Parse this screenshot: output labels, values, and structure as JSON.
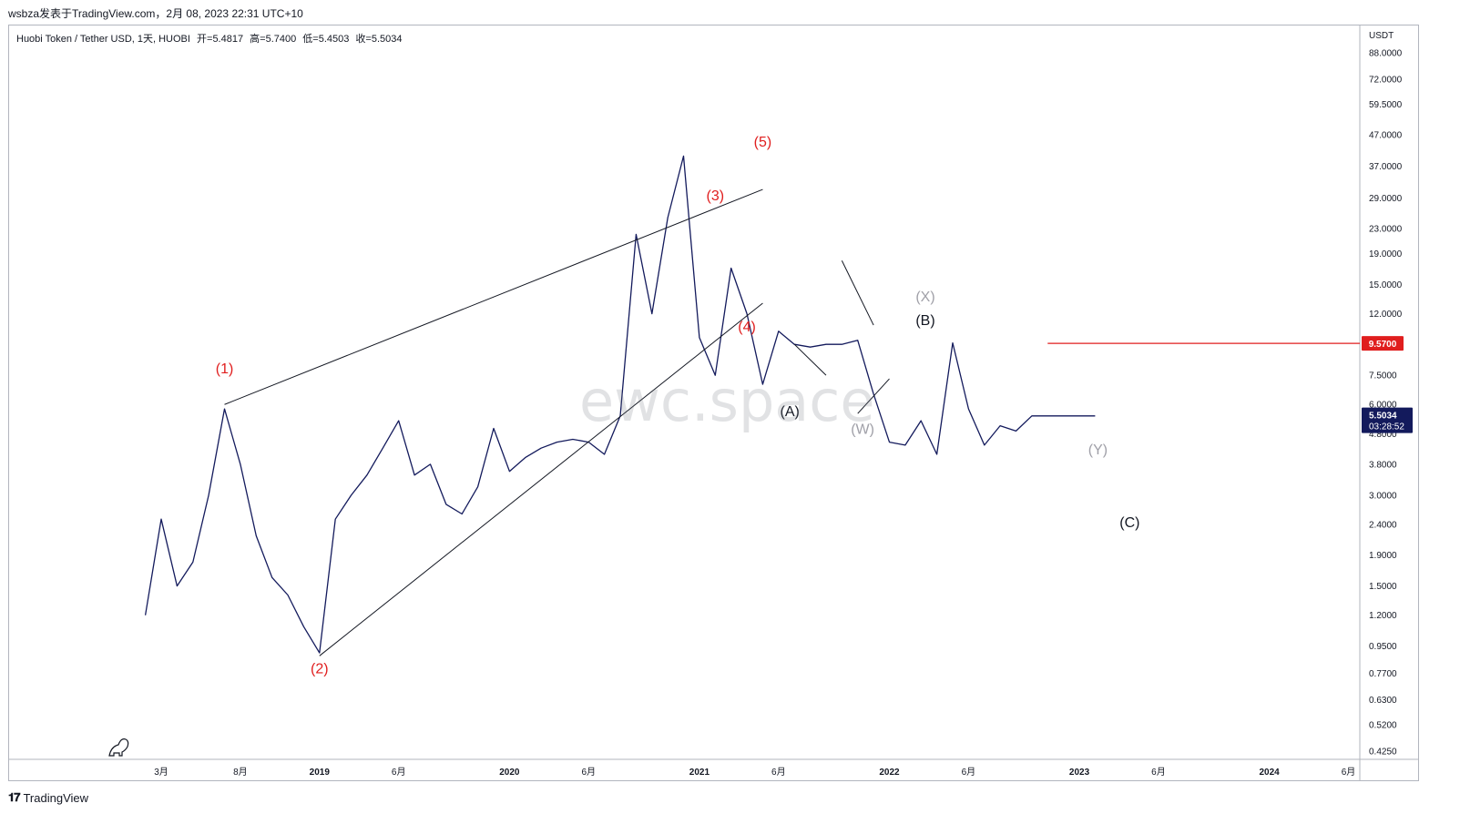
{
  "header": {
    "publish_line": "wsbza发表于TradingView.com，2月 08, 2023 22:31 UTC+10"
  },
  "legend": {
    "symbol": "Huobi Token / Tether USD, 1天, HUOBI",
    "open": "开=5.4817",
    "high": "高=5.7400",
    "low": "低=5.4503",
    "close": "收=5.5034"
  },
  "watermark": "ewc.space",
  "footer": {
    "brand": "TradingView"
  },
  "chart_data": {
    "type": "line",
    "scale": "log",
    "currency_label": "USDT",
    "y_ticks": [
      "88.0000",
      "72.0000",
      "59.5000",
      "47.0000",
      "37.0000",
      "29.0000",
      "23.0000",
      "19.0000",
      "15.0000",
      "12.0000",
      "7.5000",
      "6.0000",
      "4.8000",
      "3.8000",
      "3.0000",
      "2.4000",
      "1.9000",
      "1.5000",
      "1.2000",
      "0.9500",
      "0.7700",
      "0.6300",
      "0.5200",
      "0.4250"
    ],
    "x_ticks": [
      "3月",
      "8月",
      "2019",
      "6月",
      "2020",
      "6月",
      "2021",
      "6月",
      "2022",
      "6月",
      "2023",
      "6月",
      "2024",
      "6月"
    ],
    "series": [
      {
        "x": [
          "2018-02",
          "2018-03",
          "2018-04",
          "2018-05",
          "2018-06",
          "2018-07",
          "2018-08",
          "2018-09",
          "2018-10",
          "2018-11",
          "2018-12",
          "2019-01",
          "2019-02",
          "2019-03",
          "2019-04",
          "2019-05",
          "2019-06",
          "2019-07",
          "2019-08",
          "2019-09",
          "2019-10",
          "2019-11",
          "2019-12",
          "2020-01",
          "2020-02",
          "2020-03",
          "2020-04",
          "2020-05",
          "2020-06",
          "2020-07",
          "2020-08",
          "2020-09",
          "2020-10",
          "2020-11",
          "2020-12",
          "2021-01",
          "2021-02",
          "2021-03",
          "2021-04",
          "2021-05",
          "2021-06",
          "2021-07",
          "2021-08",
          "2021-09",
          "2021-10",
          "2021-11",
          "2021-12",
          "2022-01",
          "2022-02",
          "2022-03",
          "2022-04",
          "2022-05",
          "2022-06",
          "2022-07",
          "2022-08",
          "2022-09",
          "2022-10",
          "2022-11",
          "2022-12",
          "2023-01",
          "2023-02"
        ],
        "y": [
          1.2,
          2.5,
          1.5,
          1.8,
          3.0,
          5.8,
          3.8,
          2.2,
          1.6,
          1.4,
          1.1,
          0.9,
          2.5,
          3.0,
          3.5,
          4.3,
          5.3,
          3.5,
          3.8,
          2.8,
          2.6,
          3.2,
          5.0,
          3.6,
          4.0,
          4.3,
          4.5,
          4.6,
          4.5,
          4.1,
          5.5,
          22.0,
          12.0,
          25.0,
          40.0,
          10.0,
          7.5,
          17.0,
          12.0,
          7.0,
          10.5,
          9.5,
          9.3,
          9.5,
          9.5,
          9.8,
          6.5,
          4.5,
          4.4,
          5.3,
          4.1,
          9.6,
          5.8,
          4.4,
          5.1,
          4.9,
          5.5,
          5.5,
          5.5,
          5.5,
          5.5
        ]
      }
    ],
    "price_level_label": "9.5700",
    "last_price_label": "5.5034",
    "countdown_label": "03:28:52",
    "annotations": [
      {
        "text": "(1)",
        "color": "#e01e1e"
      },
      {
        "text": "(2)",
        "color": "#e01e1e"
      },
      {
        "text": "(3)",
        "color": "#e01e1e"
      },
      {
        "text": "(4)",
        "color": "#e01e1e"
      },
      {
        "text": "(5)",
        "color": "#e01e1e"
      },
      {
        "text": "(A)",
        "color": "#131722"
      },
      {
        "text": "(B)",
        "color": "#131722"
      },
      {
        "text": "(C)",
        "color": "#131722"
      },
      {
        "text": "(W)",
        "color": "#a0a0a8"
      },
      {
        "text": "(X)",
        "color": "#a0a0a8"
      },
      {
        "text": "(Y)",
        "color": "#a0a0a8"
      }
    ],
    "colors": {
      "price_line": "#131a5c",
      "level_line": "#e01e1e",
      "last_price_bg": "#131a5c",
      "trend_lines": "#131722"
    },
    "grid": false
  }
}
